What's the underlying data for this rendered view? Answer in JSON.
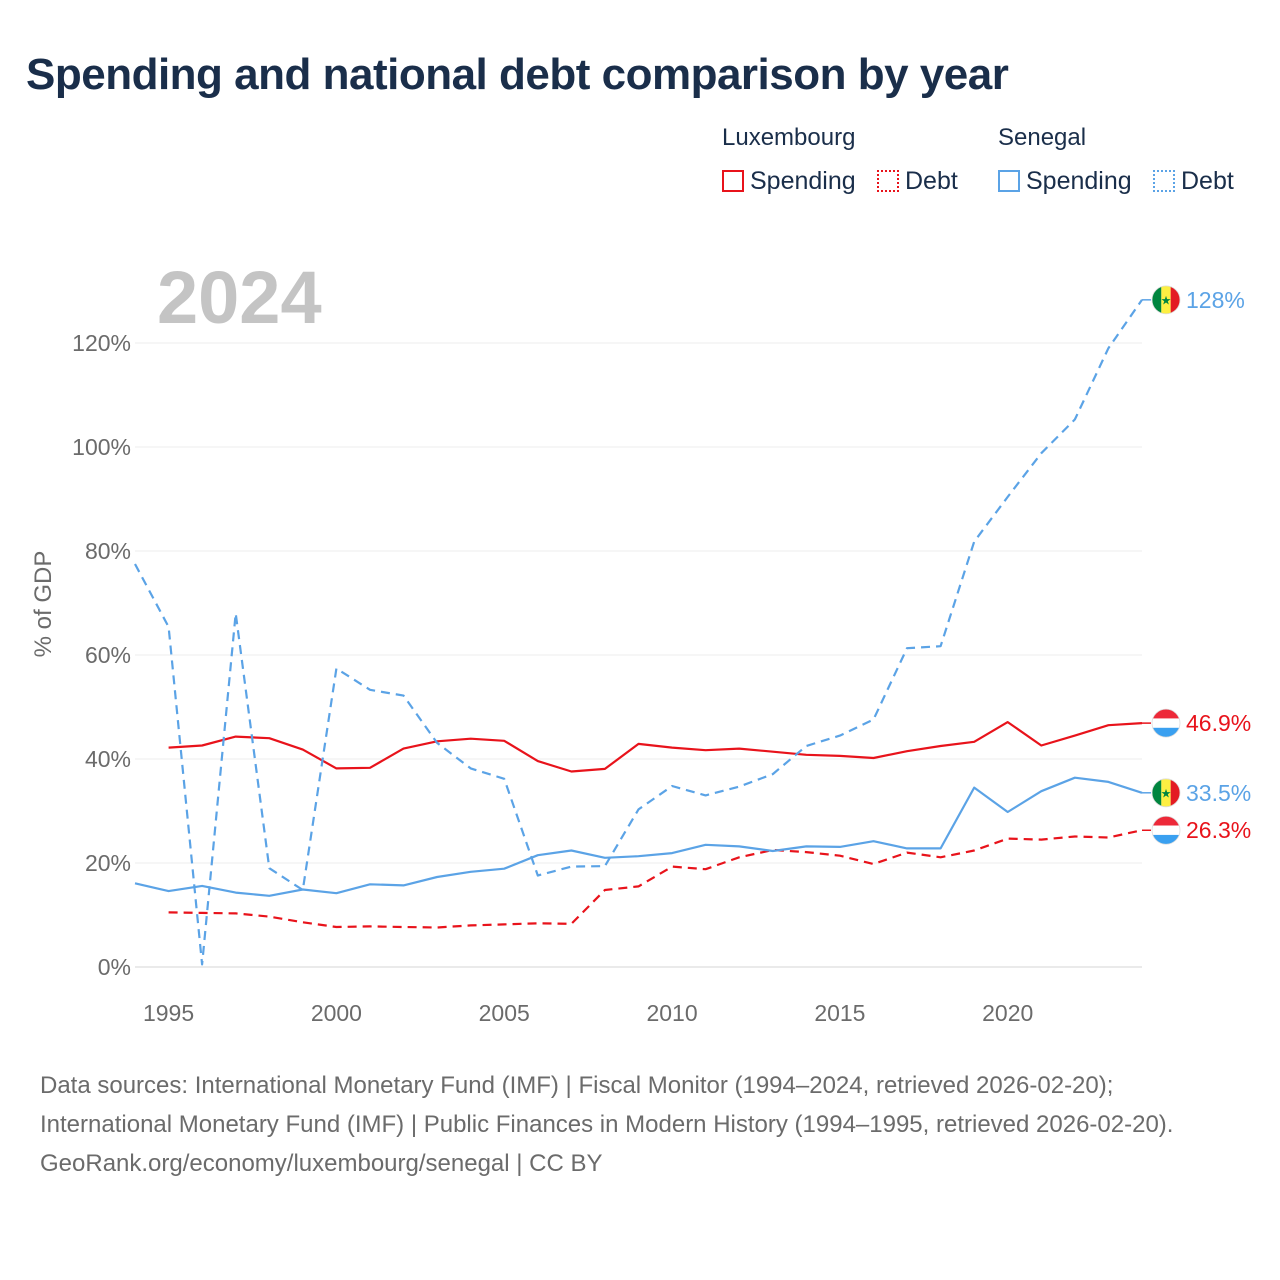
{
  "title": "Spending and national debt comparison by year",
  "legend": {
    "groups": [
      {
        "country": "Luxembourg",
        "items": [
          "Spending",
          "Debt"
        ],
        "color": "#e8131b"
      },
      {
        "country": "Senegal",
        "items": [
          "Spending",
          "Debt"
        ],
        "color": "#5ba3e6"
      }
    ]
  },
  "footer": {
    "sources": "Data sources: International Monetary Fund (IMF) | Fiscal Monitor (1994–2024, retrieved 2026-02-20); International Monetary Fund (IMF) | Public Finances in Modern History (1994–1995, retrieved 2026-02-20).",
    "attribution": "GeoRank.org/economy/luxembourg/senegal | CC BY"
  },
  "chart_data": {
    "type": "line",
    "title": "Spending and national debt comparison by year",
    "year_label": "2024",
    "ylabel": "% of GDP",
    "xlabel": "",
    "xlim": [
      1994,
      2024
    ],
    "ylim": [
      0,
      130
    ],
    "x_ticks": [
      1995,
      2000,
      2005,
      2010,
      2015,
      2020
    ],
    "y_ticks": [
      0,
      20,
      40,
      60,
      80,
      100,
      120
    ],
    "y_tick_labels": [
      "0%",
      "20%",
      "40%",
      "60%",
      "80%",
      "100%",
      "120%"
    ],
    "grid": true,
    "series": [
      {
        "name": "Luxembourg Spending",
        "country": "Luxembourg",
        "metric": "Spending",
        "color": "#e8131b",
        "style": "solid",
        "end_label": "46.9%",
        "x": [
          1995,
          1996,
          1997,
          1998,
          1999,
          2000,
          2001,
          2002,
          2003,
          2004,
          2005,
          2006,
          2007,
          2008,
          2009,
          2010,
          2011,
          2012,
          2013,
          2014,
          2015,
          2016,
          2017,
          2018,
          2019,
          2020,
          2021,
          2022,
          2023,
          2024
        ],
        "values": [
          42.2,
          42.6,
          44.3,
          44.0,
          41.8,
          38.2,
          38.3,
          42.0,
          43.4,
          43.9,
          43.5,
          39.6,
          37.6,
          38.1,
          42.9,
          42.2,
          41.7,
          42.0,
          41.4,
          40.8,
          40.6,
          40.2,
          41.5,
          42.5,
          43.3,
          47.1,
          42.6,
          44.5,
          46.5,
          46.9
        ]
      },
      {
        "name": "Luxembourg Debt",
        "country": "Luxembourg",
        "metric": "Debt",
        "color": "#e8131b",
        "style": "dashed",
        "end_label": "26.3%",
        "x": [
          1995,
          1996,
          1997,
          1998,
          1999,
          2000,
          2001,
          2002,
          2003,
          2004,
          2005,
          2006,
          2007,
          2008,
          2009,
          2010,
          2011,
          2012,
          2013,
          2014,
          2015,
          2016,
          2017,
          2018,
          2019,
          2020,
          2021,
          2022,
          2023,
          2024
        ],
        "values": [
          10.5,
          10.4,
          10.3,
          9.7,
          8.6,
          7.7,
          7.8,
          7.7,
          7.6,
          8.0,
          8.2,
          8.4,
          8.3,
          14.8,
          15.5,
          19.3,
          18.8,
          21.1,
          22.5,
          22.1,
          21.4,
          19.8,
          22.0,
          21.1,
          22.4,
          24.7,
          24.5,
          25.1,
          24.9,
          26.3
        ]
      },
      {
        "name": "Senegal Spending",
        "country": "Senegal",
        "metric": "Spending",
        "color": "#5ba3e6",
        "style": "solid",
        "end_label": "33.5%",
        "x": [
          1994,
          1995,
          1996,
          1997,
          1998,
          1999,
          2000,
          2001,
          2002,
          2003,
          2004,
          2005,
          2006,
          2007,
          2008,
          2009,
          2010,
          2011,
          2012,
          2013,
          2014,
          2015,
          2016,
          2017,
          2018,
          2019,
          2020,
          2021,
          2022,
          2023,
          2024
        ],
        "values": [
          16.1,
          14.6,
          15.6,
          14.3,
          13.7,
          14.9,
          14.2,
          15.9,
          15.7,
          17.3,
          18.3,
          18.9,
          21.5,
          22.4,
          21.0,
          21.3,
          21.9,
          23.5,
          23.2,
          22.3,
          23.2,
          23.1,
          24.2,
          22.8,
          22.8,
          34.5,
          29.8,
          33.8,
          36.4,
          35.6,
          33.5
        ]
      },
      {
        "name": "Senegal Debt",
        "country": "Senegal",
        "metric": "Debt",
        "color": "#5ba3e6",
        "style": "dashed",
        "end_label": "128%",
        "x": [
          1994,
          1995,
          1996,
          1997,
          1998,
          1999,
          2000,
          2001,
          2002,
          2003,
          2004,
          2005,
          2006,
          2007,
          2008,
          2009,
          2010,
          2011,
          2012,
          2013,
          2014,
          2015,
          2016,
          2017,
          2018,
          2019,
          2020,
          2021,
          2022,
          2023,
          2024
        ],
        "values": [
          77.5,
          65.4,
          0.5,
          68.0,
          19.0,
          14.8,
          57.4,
          53.3,
          52.2,
          43.1,
          38.2,
          36.2,
          17.6,
          19.3,
          19.4,
          30.3,
          34.8,
          33.0,
          34.7,
          37.1,
          42.5,
          44.5,
          47.6,
          61.3,
          61.7,
          81.8,
          90.4,
          98.8,
          105.3,
          119.0,
          128.3
        ]
      }
    ]
  }
}
